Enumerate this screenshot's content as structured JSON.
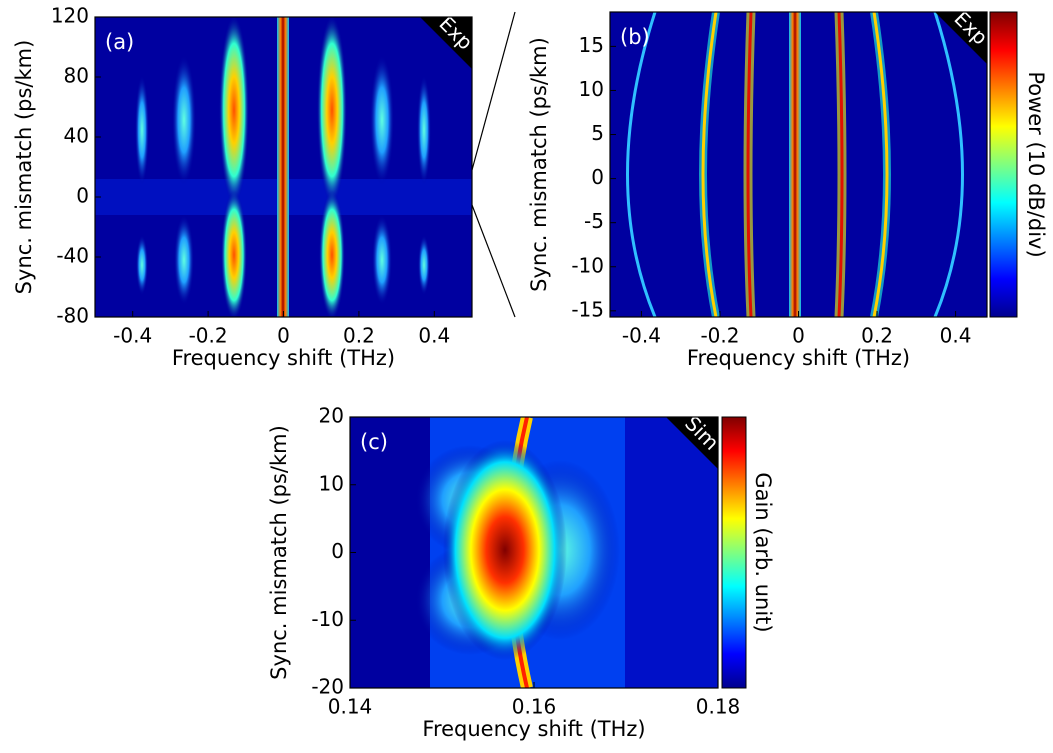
{
  "chart_data": [
    {
      "type": "heatmap",
      "panel": "(a)",
      "tag": "Exp",
      "xlabel": "Frequency shift (THz)",
      "ylabel": "Sync. mismatch (ps/km)",
      "xlim": [
        -0.5,
        0.5
      ],
      "xticks": [
        -0.4,
        -0.2,
        0,
        0.2,
        0.4
      ],
      "ylim": [
        -80,
        120
      ],
      "yticks": [
        -80,
        -40,
        0,
        40,
        80,
        120
      ]
    },
    {
      "type": "heatmap",
      "panel": "(b)",
      "tag": "Exp",
      "xlabel": "Frequency shift (THz)",
      "ylabel": "Sync. mismatch (ps/km)",
      "xlim": [
        -0.48,
        0.48
      ],
      "xticks": [
        -0.4,
        -0.2,
        0,
        0.2,
        0.4
      ],
      "ylim": [
        -15.7,
        18.9
      ],
      "yticks": [
        -15,
        -10,
        -5,
        0,
        5,
        10,
        15
      ],
      "colorbar_label": "Power (10 dB/div)"
    },
    {
      "type": "heatmap",
      "panel": "(c)",
      "tag": "Sim",
      "xlabel": "Frequency shift (THz)",
      "ylabel": "Sync. mismatch (ps/km)",
      "xlim": [
        0.14,
        0.18
      ],
      "xticks": [
        0.14,
        0.16,
        0.18
      ],
      "ylim": [
        -20,
        20
      ],
      "yticks": [
        -20,
        -10,
        0,
        10,
        20
      ],
      "colorbar_label": "Gain (arb. unit)"
    }
  ]
}
